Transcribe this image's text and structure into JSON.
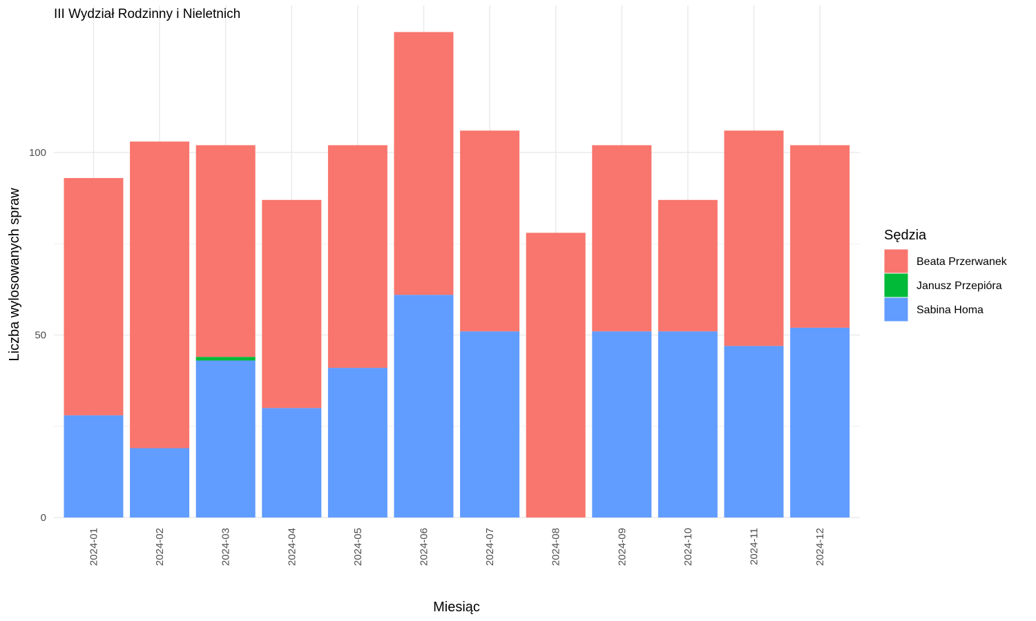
{
  "chart_data": {
    "type": "bar",
    "stacked": true,
    "title": "III Wydział Rodzinny i Nieletnich",
    "xlabel": "Miesiąc",
    "ylabel": "Liczba wylosowanych spraw",
    "ylim": [
      0,
      138
    ],
    "yticks": [
      0,
      50,
      100
    ],
    "grid": true,
    "legend_title": "Sędzia",
    "legend_position": "right",
    "categories": [
      "2024-01",
      "2024-02",
      "2024-03",
      "2024-04",
      "2024-05",
      "2024-06",
      "2024-07",
      "2024-08",
      "2024-09",
      "2024-10",
      "2024-11",
      "2024-12"
    ],
    "series": [
      {
        "name": "Sabina Homa",
        "color": "#619CFF",
        "values": [
          28,
          19,
          43,
          30,
          41,
          61,
          51,
          0,
          51,
          51,
          47,
          52
        ]
      },
      {
        "name": "Janusz Przepióra",
        "color": "#00BA38",
        "values": [
          0,
          0,
          1,
          0,
          0,
          0,
          0,
          0,
          0,
          0,
          0,
          0
        ]
      },
      {
        "name": "Beata Przerwanek",
        "color": "#F8766D",
        "values": [
          65,
          84,
          58,
          57,
          61,
          72,
          55,
          78,
          51,
          36,
          59,
          50
        ]
      }
    ],
    "legend_order": [
      "Beata Przerwanek",
      "Janusz Przepióra",
      "Sabina Homa"
    ]
  }
}
